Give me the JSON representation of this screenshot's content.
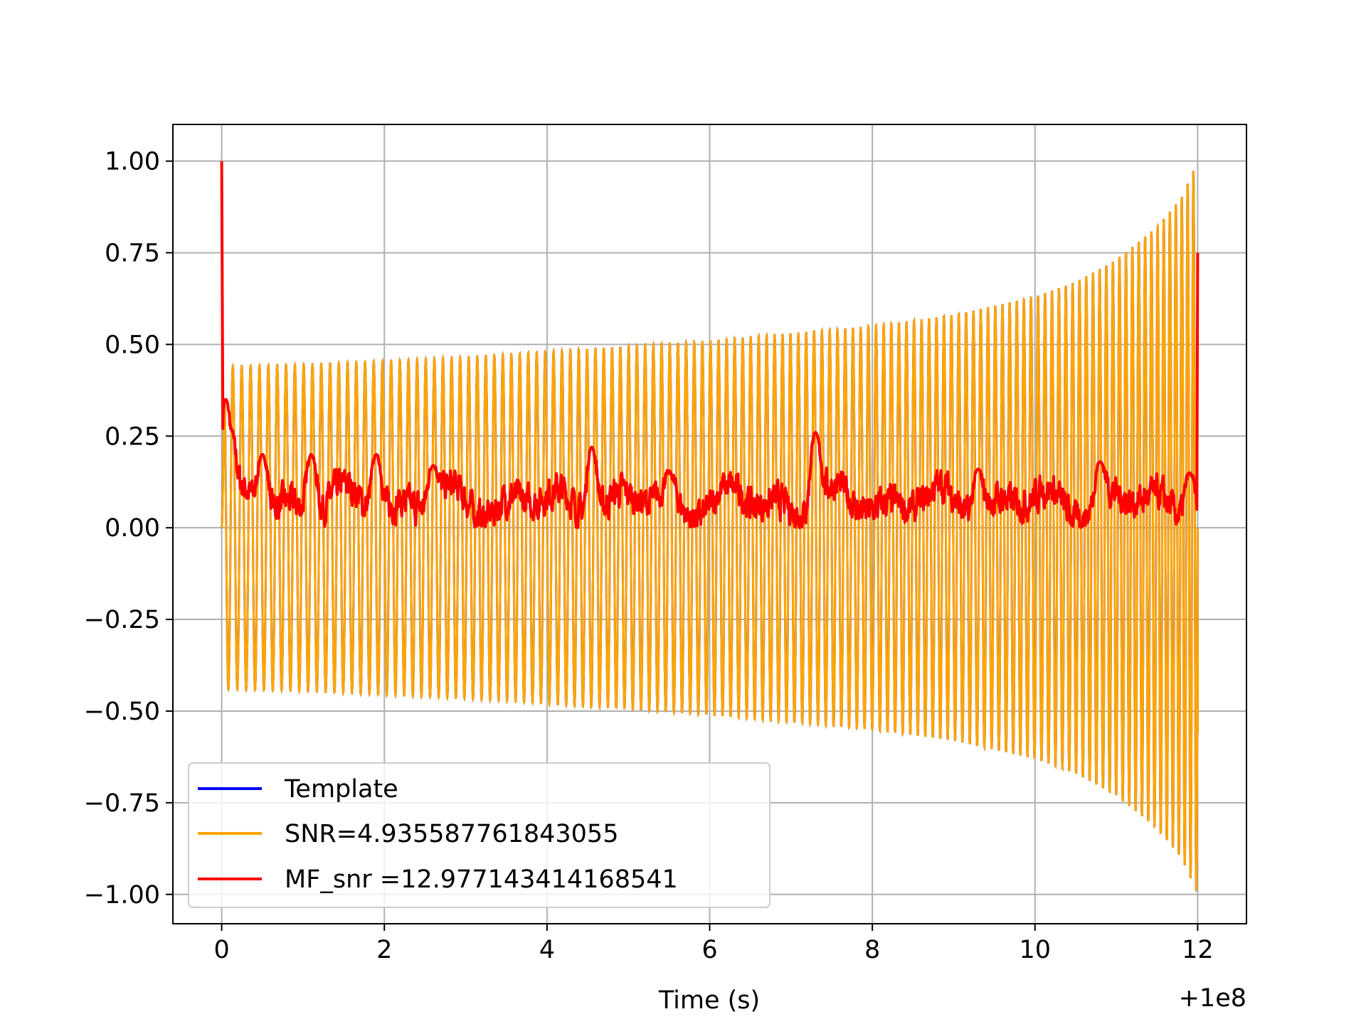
{
  "chart_data": {
    "type": "line",
    "title": "",
    "xlabel": "Time (s)",
    "ylabel": "",
    "x_offset_label": "+1e8",
    "xlim": [
      -0.6,
      12.6
    ],
    "ylim": [
      -1.08,
      1.1
    ],
    "grid": true,
    "x_ticks": [
      0,
      2,
      4,
      6,
      8,
      10,
      12
    ],
    "x_tick_labels": [
      "0",
      "2",
      "4",
      "6",
      "8",
      "10",
      "12"
    ],
    "y_ticks": [
      1.0,
      0.75,
      0.5,
      0.25,
      0.0,
      -0.25,
      -0.5,
      -0.75,
      -1.0
    ],
    "y_tick_labels": [
      "1.00",
      "0.75",
      "0.50",
      "0.25",
      "0.00",
      "−0.25",
      "−0.50",
      "−0.75",
      "−1.00"
    ],
    "legend_position": "lower-left",
    "series": [
      {
        "name": "Template",
        "color": "#0000ff",
        "description": "chirp waveform, hidden beneath SNR series",
        "x_start": 0.0,
        "x_end": 12.0
      },
      {
        "name": "SNR=4.935587761843055",
        "color": "#ffa500",
        "description": "chirp waveform: amplitude grows from ~0.44 to ~1.0, frequency increases",
        "x_start": 0.0,
        "x_end": 12.0,
        "envelope": {
          "t": [
            0.05,
            1,
            2,
            3,
            4,
            5,
            6,
            7,
            8,
            9,
            10,
            10.5,
            11,
            11.5,
            11.8,
            12.0
          ],
          "amp": [
            0.44,
            0.445,
            0.455,
            0.465,
            0.48,
            0.495,
            0.51,
            0.53,
            0.55,
            0.58,
            0.63,
            0.67,
            0.73,
            0.82,
            0.9,
            1.0
          ]
        },
        "cycles_total": 125
      },
      {
        "name": "MF_snr =12.977143414168541",
        "color": "#ff0000",
        "description": "matched-filter output, noisy around 0.05-0.15 with edge spikes",
        "x_start": 0.0,
        "x_end": 12.0,
        "start_spike": 1.0,
        "end_spike": 0.75,
        "peaks": [
          {
            "x": 0.05,
            "y": 0.35
          },
          {
            "x": 0.1,
            "y": 0.27
          },
          {
            "x": 0.5,
            "y": 0.2
          },
          {
            "x": 1.1,
            "y": 0.2
          },
          {
            "x": 1.9,
            "y": 0.2
          },
          {
            "x": 2.6,
            "y": 0.17
          },
          {
            "x": 4.55,
            "y": 0.22
          },
          {
            "x": 5.5,
            "y": 0.15
          },
          {
            "x": 7.3,
            "y": 0.26
          },
          {
            "x": 9.3,
            "y": 0.16
          },
          {
            "x": 10.8,
            "y": 0.18
          },
          {
            "x": 11.9,
            "y": 0.15
          }
        ]
      }
    ]
  }
}
